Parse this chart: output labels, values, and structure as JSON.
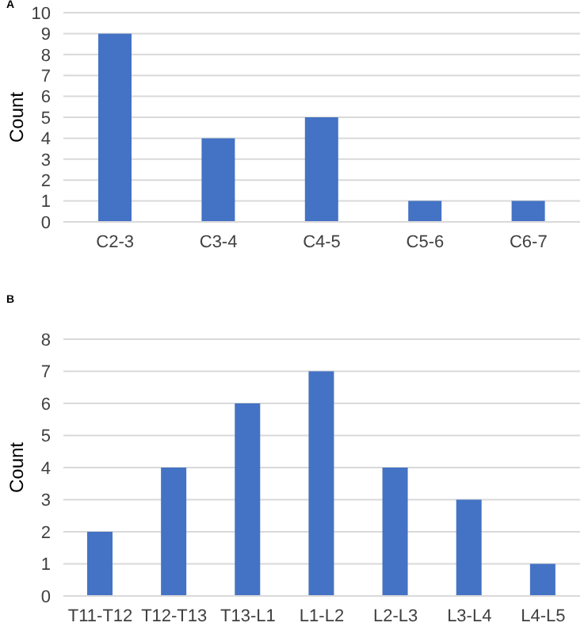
{
  "chart_data": [
    {
      "type": "bar",
      "title": "A",
      "ylabel": "Count",
      "categories": [
        "C2-3",
        "C3-4",
        "C4-5",
        "C5-6",
        "C6-7"
      ],
      "values": [
        9,
        4,
        5,
        1,
        1
      ],
      "color": "#4472c4",
      "ylim": [
        0,
        10
      ],
      "yticks": [
        0,
        1,
        2,
        3,
        4,
        5,
        6,
        7,
        8,
        9,
        10
      ],
      "grid": "y"
    },
    {
      "type": "bar",
      "title": "B",
      "ylabel": "Count",
      "categories": [
        "T11-T12",
        "T12-T13",
        "T13-L1",
        "L1-L2",
        "L2-L3",
        "L3-L4",
        "L4-L5"
      ],
      "values": [
        2,
        4,
        6,
        7,
        4,
        3,
        1
      ],
      "color": "#4472c4",
      "ylim": [
        0,
        8
      ],
      "yticks": [
        0,
        1,
        2,
        3,
        4,
        5,
        6,
        7,
        8
      ],
      "grid": "y"
    }
  ]
}
